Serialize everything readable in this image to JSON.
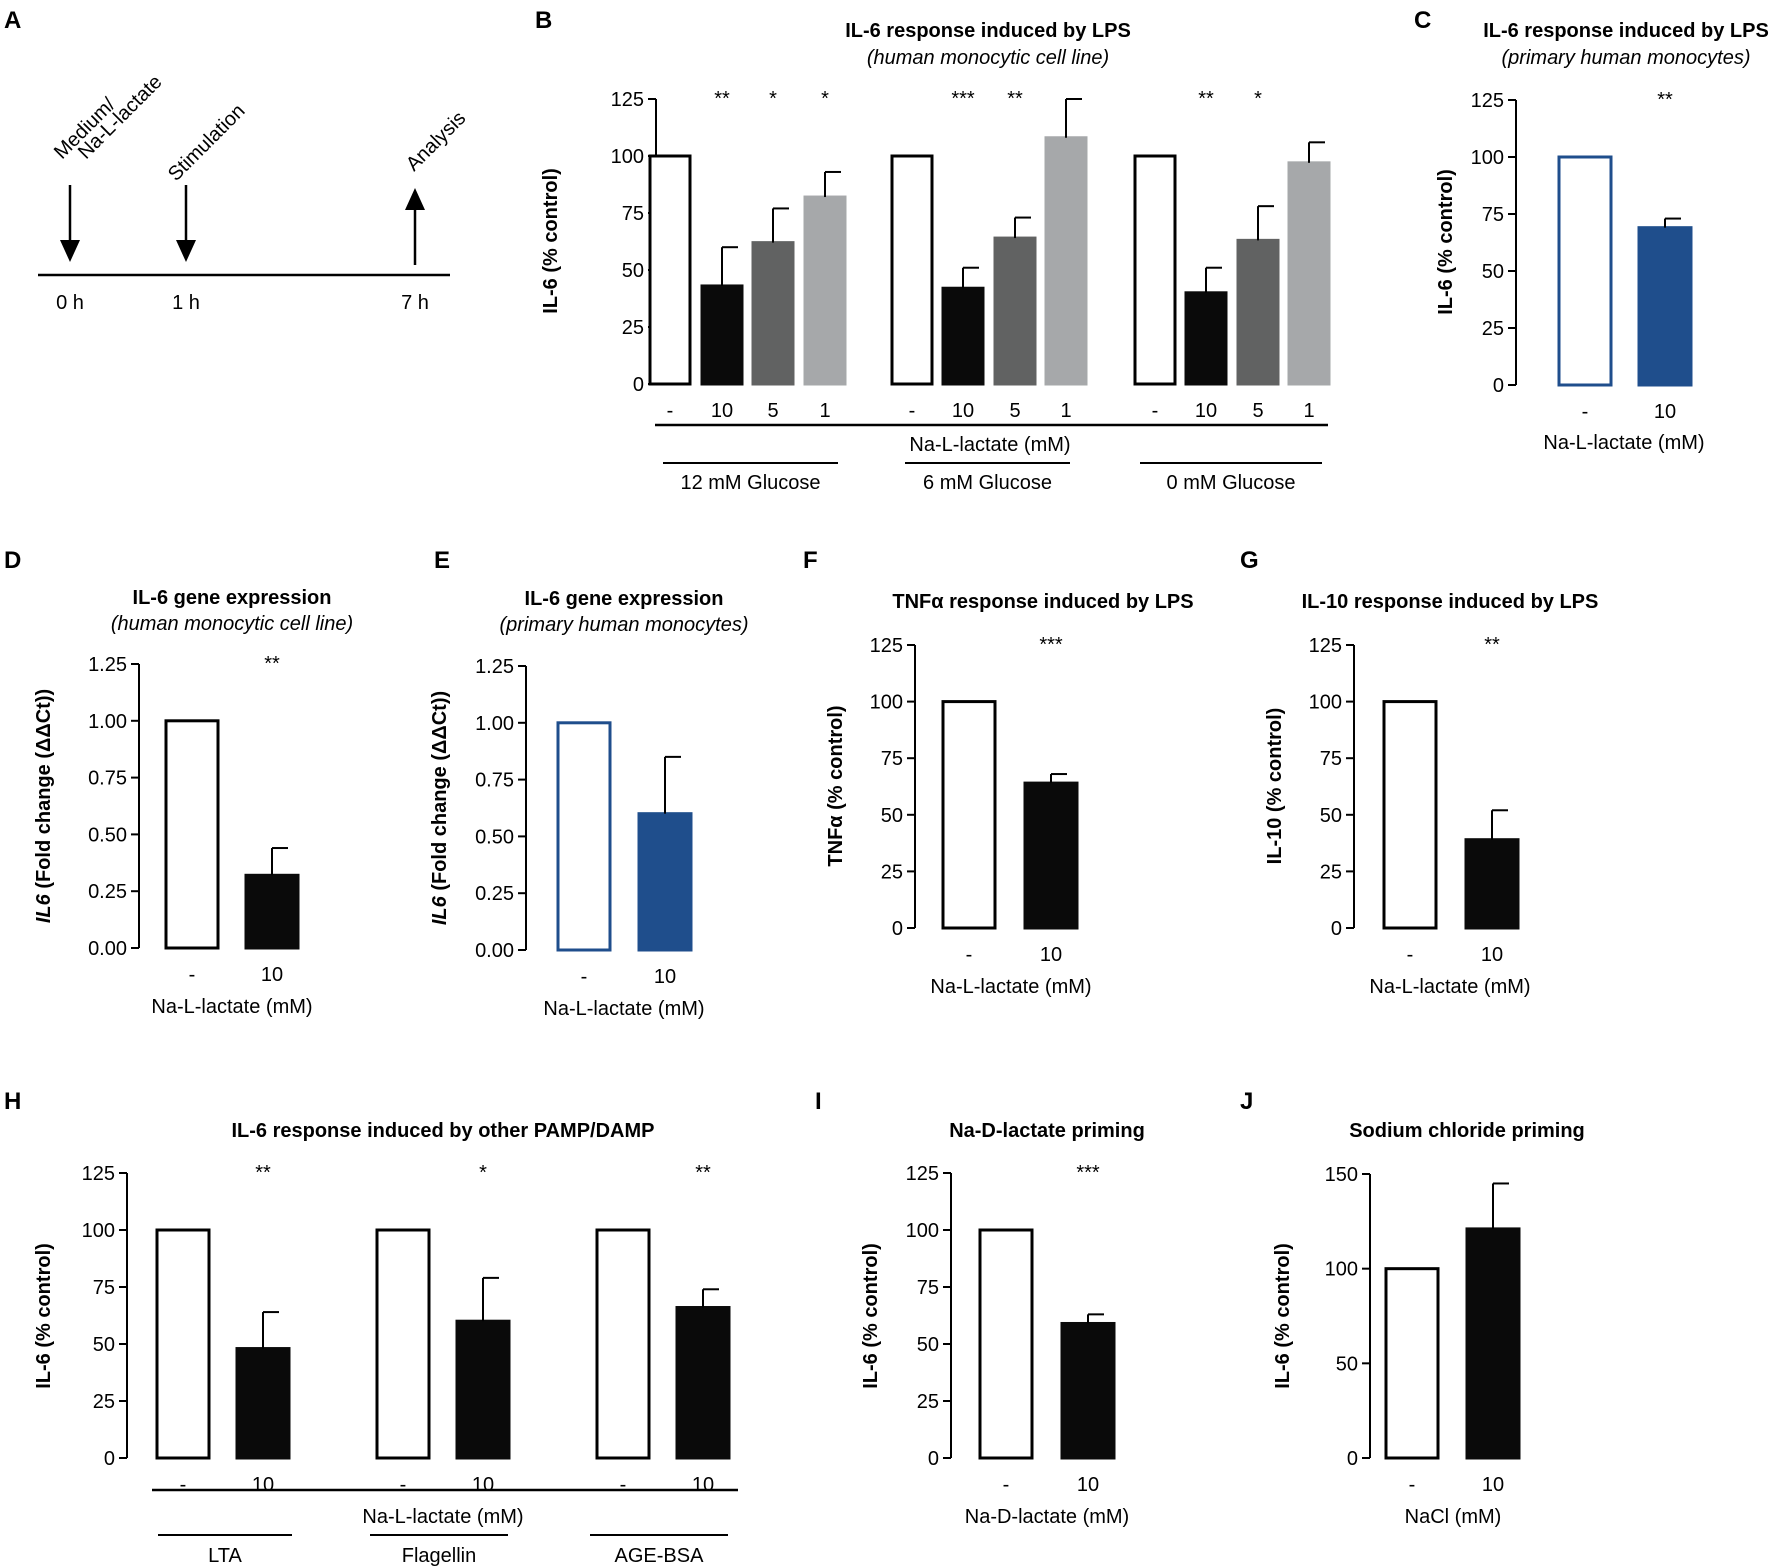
{
  "timeline": {
    "label": "A",
    "events": [
      {
        "top": "Medium/",
        "bottom": "Na-L-lactate",
        "time": "0 h",
        "direction": "down"
      },
      {
        "top": "Stimulation",
        "bottom": "",
        "time": "1 h",
        "direction": "down"
      },
      {
        "top": "Analysis",
        "bottom": "",
        "time": "7 h",
        "direction": "up"
      }
    ]
  },
  "chart_data": [
    {
      "panel": "B",
      "type": "bar",
      "title": "IL-6 response induced by LPS",
      "subtitle": "(human monocytic cell line)",
      "ylabel": "IL-6 (% control)",
      "ylim": [
        0,
        125
      ],
      "yticks": [
        "0",
        "25",
        "50",
        "75",
        "100",
        "125"
      ],
      "xlabel": "Na-L-lactate (mM)",
      "bars": [
        {
          "category": "-",
          "group": "12 mM Glucose",
          "value": 100,
          "error": 0,
          "sig": "",
          "fill": "#ffffff",
          "stroke": "#000000"
        },
        {
          "category": "10",
          "group": "12 mM Glucose",
          "value": 43,
          "error": 17,
          "sig": "**",
          "fill": "#0a0a0a",
          "stroke": "#0a0a0a"
        },
        {
          "category": "5",
          "group": "12 mM Glucose",
          "value": 62,
          "error": 15,
          "sig": "*",
          "fill": "#616262",
          "stroke": "#616262"
        },
        {
          "category": "1",
          "group": "12 mM Glucose",
          "value": 82,
          "error": 11,
          "sig": "*",
          "fill": "#a6a8aa",
          "stroke": "#a6a8aa"
        },
        {
          "category": "-",
          "group": "6 mM Glucose",
          "value": 100,
          "error": 0,
          "sig": "",
          "fill": "#ffffff",
          "stroke": "#000000"
        },
        {
          "category": "10",
          "group": "6 mM Glucose",
          "value": 42,
          "error": 9,
          "sig": "***",
          "fill": "#0a0a0a",
          "stroke": "#0a0a0a"
        },
        {
          "category": "5",
          "group": "6 mM Glucose",
          "value": 64,
          "error": 9,
          "sig": "**",
          "fill": "#616262",
          "stroke": "#616262"
        },
        {
          "category": "1",
          "group": "6 mM Glucose",
          "value": 108,
          "error": 17,
          "sig": "",
          "fill": "#a6a8aa",
          "stroke": "#a6a8aa"
        },
        {
          "category": "-",
          "group": "0 mM Glucose",
          "value": 100,
          "error": 0,
          "sig": "",
          "fill": "#ffffff",
          "stroke": "#000000"
        },
        {
          "category": "10",
          "group": "0 mM Glucose",
          "value": 40,
          "error": 11,
          "sig": "**",
          "fill": "#0a0a0a",
          "stroke": "#0a0a0a"
        },
        {
          "category": "5",
          "group": "0 mM Glucose",
          "value": 63,
          "error": 15,
          "sig": "*",
          "fill": "#616262",
          "stroke": "#616262"
        },
        {
          "category": "1",
          "group": "0 mM Glucose",
          "value": 97,
          "error": 9,
          "sig": "",
          "fill": "#a6a8aa",
          "stroke": "#a6a8aa"
        }
      ],
      "groups": [
        "12 mM Glucose",
        "6 mM Glucose",
        "0 mM Glucose"
      ]
    },
    {
      "panel": "C",
      "type": "bar",
      "title": "IL-6 response induced by LPS",
      "subtitle": "(primary human monocytes)",
      "ylabel": "IL-6 (% control)",
      "ylim": [
        0,
        125
      ],
      "yticks": [
        "0",
        "25",
        "50",
        "75",
        "100",
        "125"
      ],
      "xlabel": "Na-L-lactate (mM)",
      "bars": [
        {
          "category": "-",
          "value": 100,
          "error": 0,
          "sig": "",
          "fill": "#ffffff",
          "stroke": "#1f4e8c"
        },
        {
          "category": "10",
          "value": 69,
          "error": 4,
          "sig": "**",
          "fill": "#1f4e8c",
          "stroke": "#1f4e8c"
        }
      ]
    },
    {
      "panel": "D",
      "type": "bar",
      "title": "IL-6 gene expression",
      "subtitle": "(human monocytic cell line)",
      "ylabel_italic": "IL6",
      "ylabel_rest": " (Fold change (ΔΔCt))",
      "ylim": [
        0,
        1.25
      ],
      "yticks": [
        "0.00",
        "0.25",
        "0.50",
        "0.75",
        "1.00",
        "1.25"
      ],
      "xlabel": "Na-L-lactate (mM)",
      "bars": [
        {
          "category": "-",
          "value": 1.0,
          "error": 0,
          "sig": "",
          "fill": "#ffffff",
          "stroke": "#000000"
        },
        {
          "category": "10",
          "value": 0.32,
          "error": 0.12,
          "sig": "**",
          "fill": "#0a0a0a",
          "stroke": "#0a0a0a"
        }
      ]
    },
    {
      "panel": "E",
      "type": "bar",
      "title": "IL-6 gene expression",
      "subtitle": "(primary human monocytes)",
      "ylabel_italic": "IL6",
      "ylabel_rest": " (Fold change (ΔΔCt))",
      "ylim": [
        0,
        1.25
      ],
      "yticks": [
        "0.00",
        "0.25",
        "0.50",
        "0.75",
        "1.00",
        "1.25"
      ],
      "xlabel": "Na-L-lactate (mM)",
      "bars": [
        {
          "category": "-",
          "value": 1.0,
          "error": 0,
          "sig": "",
          "fill": "#ffffff",
          "stroke": "#1f4e8c"
        },
        {
          "category": "10",
          "value": 0.6,
          "error": 0.25,
          "sig": "",
          "fill": "#1f4e8c",
          "stroke": "#1f4e8c"
        }
      ]
    },
    {
      "panel": "F",
      "type": "bar",
      "title": "TNFα response induced by LPS",
      "ylabel": "TNFα (% control)",
      "ylim": [
        0,
        125
      ],
      "yticks": [
        "0",
        "25",
        "50",
        "75",
        "100",
        "125"
      ],
      "xlabel": "Na-L-lactate (mM)",
      "bars": [
        {
          "category": "-",
          "value": 100,
          "error": 0,
          "sig": "",
          "fill": "#ffffff",
          "stroke": "#000000"
        },
        {
          "category": "10",
          "value": 64,
          "error": 4,
          "sig": "***",
          "fill": "#0a0a0a",
          "stroke": "#0a0a0a"
        }
      ]
    },
    {
      "panel": "G",
      "type": "bar",
      "title": "IL-10 response induced by LPS",
      "ylabel": "IL-10 (% control)",
      "ylim": [
        0,
        125
      ],
      "yticks": [
        "0",
        "25",
        "50",
        "75",
        "100",
        "125"
      ],
      "xlabel": "Na-L-lactate (mM)",
      "bars": [
        {
          "category": "-",
          "value": 100,
          "error": 0,
          "sig": "",
          "fill": "#ffffff",
          "stroke": "#000000"
        },
        {
          "category": "10",
          "value": 39,
          "error": 13,
          "sig": "**",
          "fill": "#0a0a0a",
          "stroke": "#0a0a0a"
        }
      ]
    },
    {
      "panel": "H",
      "type": "bar",
      "title": "IL-6 response induced by other PAMP/DAMP",
      "ylabel": "IL-6 (% control)",
      "ylim": [
        0,
        125
      ],
      "yticks": [
        "0",
        "25",
        "50",
        "75",
        "100",
        "125"
      ],
      "xlabel": "Na-L-lactate (mM)",
      "bars": [
        {
          "category": "-",
          "group": "LTA",
          "value": 100,
          "error": 0,
          "sig": "",
          "fill": "#ffffff",
          "stroke": "#000000"
        },
        {
          "category": "10",
          "group": "LTA",
          "value": 48,
          "error": 16,
          "sig": "**",
          "fill": "#0a0a0a",
          "stroke": "#0a0a0a"
        },
        {
          "category": "-",
          "group": "Flagellin",
          "value": 100,
          "error": 0,
          "sig": "",
          "fill": "#ffffff",
          "stroke": "#000000"
        },
        {
          "category": "10",
          "group": "Flagellin",
          "value": 60,
          "error": 19,
          "sig": "*",
          "fill": "#0a0a0a",
          "stroke": "#0a0a0a"
        },
        {
          "category": "-",
          "group": "AGE-BSA",
          "value": 100,
          "error": 0,
          "sig": "",
          "fill": "#ffffff",
          "stroke": "#000000"
        },
        {
          "category": "10",
          "group": "AGE-BSA",
          "value": 66,
          "error": 8,
          "sig": "**",
          "fill": "#0a0a0a",
          "stroke": "#0a0a0a"
        }
      ],
      "groups": [
        "LTA",
        "Flagellin",
        "AGE-BSA"
      ]
    },
    {
      "panel": "I",
      "type": "bar",
      "title": "Na-D-lactate priming",
      "ylabel": "IL-6 (% control)",
      "ylim": [
        0,
        125
      ],
      "yticks": [
        "0",
        "25",
        "50",
        "75",
        "100",
        "125"
      ],
      "xlabel": "Na-D-lactate (mM)",
      "bars": [
        {
          "category": "-",
          "value": 100,
          "error": 0,
          "sig": "",
          "fill": "#ffffff",
          "stroke": "#000000"
        },
        {
          "category": "10",
          "value": 59,
          "error": 4,
          "sig": "***",
          "fill": "#0a0a0a",
          "stroke": "#0a0a0a"
        }
      ]
    },
    {
      "panel": "J",
      "type": "bar",
      "title": "Sodium chloride priming",
      "ylabel": "IL-6 (% control)",
      "ylim": [
        0,
        150
      ],
      "yticks": [
        "0",
        "50",
        "100",
        "150"
      ],
      "xlabel": "NaCl (mM)",
      "bars": [
        {
          "category": "-",
          "value": 100,
          "error": 0,
          "sig": "",
          "fill": "#ffffff",
          "stroke": "#000000"
        },
        {
          "category": "10",
          "value": 121,
          "error": 24,
          "sig": "",
          "fill": "#0a0a0a",
          "stroke": "#0a0a0a"
        }
      ]
    }
  ]
}
